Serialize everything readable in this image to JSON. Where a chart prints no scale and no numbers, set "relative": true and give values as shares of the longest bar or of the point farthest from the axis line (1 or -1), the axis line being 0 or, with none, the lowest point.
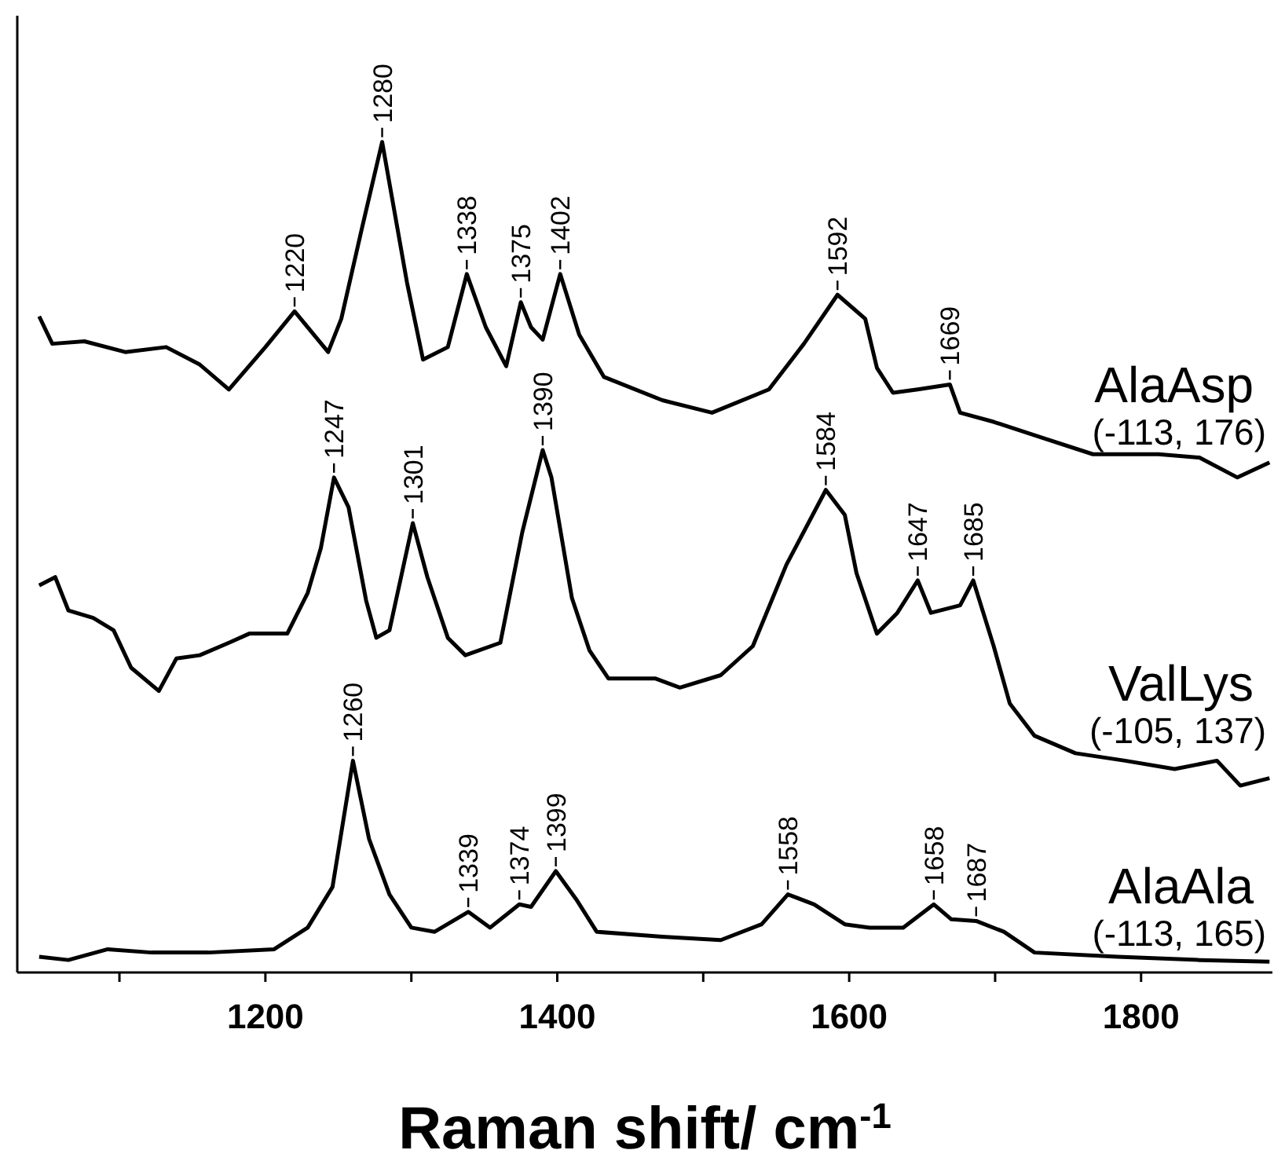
{
  "chart_data": {
    "type": "line",
    "relative": true,
    "xlabel": "Raman shift/ cm$^{-1}$",
    "xlim": [
      1030,
      1890
    ],
    "xticks": [
      {
        "value": 1100,
        "label": null
      },
      1200,
      {
        "value": 1300,
        "label": null
      },
      1400,
      {
        "value": 1500,
        "label": null
      },
      1600,
      {
        "value": 1700,
        "label": null
      },
      1800
    ],
    "marker": "none",
    "line_style": "solid",
    "series": [
      {
        "name": "AlaAsp",
        "color": "#000000",
        "x": [
          1045,
          1054,
          1076,
          1104,
          1132,
          1155,
          1175,
          1200,
          1220,
          1243,
          1252,
          1266,
          1280,
          1297,
          1308,
          1325,
          1338,
          1351,
          1365,
          1375,
          1382,
          1390,
          1402,
          1415,
          1432,
          1472,
          1506,
          1545,
          1569,
          1592,
          1611,
          1619,
          1630,
          1647,
          1669,
          1676,
          1699,
          1732,
          1767,
          1812,
          1840,
          1866,
          1888
        ],
        "values": [
          0.79,
          0.757,
          0.76,
          0.747,
          0.753,
          0.732,
          0.702,
          0.753,
          0.796,
          0.747,
          0.787,
          0.895,
          1.0,
          0.831,
          0.738,
          0.753,
          0.841,
          0.777,
          0.73,
          0.807,
          0.777,
          0.762,
          0.841,
          0.768,
          0.717,
          0.689,
          0.674,
          0.702,
          0.757,
          0.816,
          0.787,
          0.728,
          0.698,
          0.702,
          0.708,
          0.674,
          0.663,
          0.644,
          0.624,
          0.624,
          0.62,
          0.596,
          0.614
        ]
      },
      {
        "name": "ValLys",
        "color": "#000000",
        "x": [
          1045,
          1056,
          1065,
          1082,
          1096,
          1108,
          1127,
          1139,
          1155,
          1175,
          1189,
          1215,
          1229,
          1238,
          1247,
          1257,
          1269,
          1276,
          1285,
          1301,
          1311,
          1325,
          1337,
          1361,
          1376,
          1390,
          1396,
          1410,
          1422,
          1435,
          1467,
          1484,
          1512,
          1534,
          1557,
          1584,
          1597,
          1605,
          1619,
          1633,
          1647,
          1656,
          1676,
          1685,
          1699,
          1710,
          1727,
          1755,
          1789,
          1823,
          1852,
          1868,
          1888
        ],
        "values": [
          0.466,
          0.476,
          0.436,
          0.427,
          0.412,
          0.367,
          0.339,
          0.378,
          0.382,
          0.397,
          0.408,
          0.408,
          0.457,
          0.511,
          0.596,
          0.56,
          0.448,
          0.403,
          0.412,
          0.541,
          0.476,
          0.403,
          0.382,
          0.397,
          0.53,
          0.629,
          0.596,
          0.451,
          0.388,
          0.354,
          0.354,
          0.343,
          0.358,
          0.393,
          0.491,
          0.581,
          0.551,
          0.481,
          0.408,
          0.433,
          0.472,
          0.433,
          0.442,
          0.472,
          0.393,
          0.324,
          0.285,
          0.264,
          0.255,
          0.245,
          0.255,
          0.225,
          0.234
        ]
      },
      {
        "name": "AlaAla",
        "color": "#000000",
        "x": [
          1045,
          1065,
          1092,
          1122,
          1161,
          1206,
          1229,
          1246,
          1260,
          1271,
          1285,
          1300,
          1316,
          1339,
          1354,
          1374,
          1382,
          1399,
          1413,
          1427,
          1472,
          1512,
          1540,
          1558,
          1576,
          1597,
          1614,
          1637,
          1658,
          1670,
          1687,
          1706,
          1727,
          1784,
          1840,
          1888
        ],
        "values": [
          0.019,
          0.015,
          0.028,
          0.024,
          0.024,
          0.028,
          0.054,
          0.103,
          0.255,
          0.161,
          0.094,
          0.054,
          0.049,
          0.073,
          0.054,
          0.082,
          0.079,
          0.122,
          0.088,
          0.049,
          0.043,
          0.039,
          0.058,
          0.094,
          0.082,
          0.058,
          0.054,
          0.054,
          0.082,
          0.064,
          0.062,
          0.049,
          0.024,
          0.019,
          0.015,
          0.013
        ]
      }
    ],
    "annotations": [
      "(-113, 176)",
      "(-105, 137)",
      "(-113, 165)",
      {
        "text": "1220",
        "x": 1220,
        "y": 0.796
      },
      {
        "text": "1280",
        "x": 1280,
        "y": 1.0
      },
      {
        "text": "1338",
        "x": 1338,
        "y": 0.841
      },
      {
        "text": "1375",
        "x": 1375,
        "y": 0.807
      },
      {
        "text": "1402",
        "x": 1402,
        "y": 0.841
      },
      {
        "text": "1592",
        "x": 1592,
        "y": 0.816
      },
      {
        "text": "1669",
        "x": 1669,
        "y": 0.708
      },
      {
        "text": "1247",
        "x": 1247,
        "y": 0.596
      },
      {
        "text": "1301",
        "x": 1301,
        "y": 0.541
      },
      {
        "text": "1390",
        "x": 1390,
        "y": 0.629
      },
      {
        "text": "1584",
        "x": 1584,
        "y": 0.581
      },
      {
        "text": "1647",
        "x": 1647,
        "y": 0.472
      },
      {
        "text": "1685",
        "x": 1685,
        "y": 0.472
      },
      {
        "text": "1260",
        "x": 1260,
        "y": 0.255
      },
      {
        "text": "1339",
        "x": 1339,
        "y": 0.073
      },
      {
        "text": "1374",
        "x": 1374,
        "y": 0.082
      },
      {
        "text": "1399",
        "x": 1399,
        "y": 0.122
      },
      {
        "text": "1558",
        "x": 1558,
        "y": 0.094
      },
      {
        "text": "1658",
        "x": 1658,
        "y": 0.082
      },
      {
        "text": "1687",
        "x": 1687,
        "y": 0.062
      }
    ]
  }
}
